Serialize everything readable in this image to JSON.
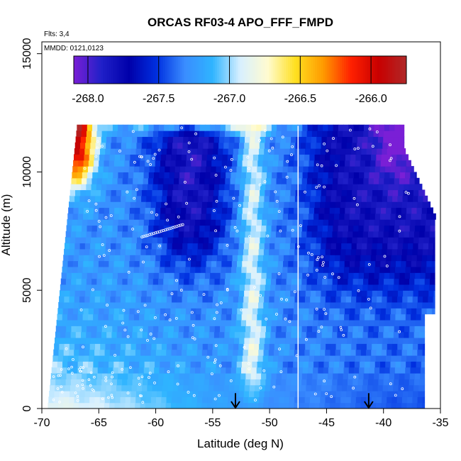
{
  "chart_data": {
    "type": "heatmap",
    "title": "ORCAS RF03-4 APO_FFF_FMPD",
    "notes": [
      "Flts: 3,4",
      "MMDD: 0121,0123"
    ],
    "xlabel": "Latitude (deg N)",
    "ylabel": "Altitude (m)",
    "xlim": [
      -70,
      -35
    ],
    "ylim": [
      0,
      15500
    ],
    "x_ticks": [
      -70,
      -65,
      -60,
      -55,
      -50,
      -45,
      -40,
      -35
    ],
    "x_tick_labels": [
      "-70",
      "-65",
      "-60",
      "-55",
      "-50",
      "-45",
      "-40",
      "-35"
    ],
    "y_ticks": [
      0,
      5000,
      10000,
      15000
    ],
    "y_tick_labels": [
      "0",
      "5000",
      "10000",
      "15000"
    ],
    "colorbar": {
      "min": -268.1,
      "max": -265.75,
      "ticks": [
        -268.0,
        -267.5,
        -267.0,
        -266.5,
        -266.0
      ],
      "tick_labels": [
        "-268.0",
        "-267.5",
        "-267.0",
        "-266.5",
        "-266.0"
      ],
      "palette": [
        "#7a1fd6",
        "#2020c8",
        "#0000aa",
        "#0030e0",
        "#3a8cff",
        "#2fb4ff",
        "#d8f0ff",
        "#fffbd0",
        "#ffe020",
        "#ff9a00",
        "#ff2000",
        "#c80000",
        "#b02828"
      ]
    },
    "field": {
      "lat_range": [
        -69.5,
        -36.3
      ],
      "alt_range": [
        0,
        12000
      ],
      "summary": "High values (yellow, -266.9) near surface south of -60 and along a narrow column near -52 to -51; low values (dark blue, -267.9) aloft between -60 and -55 and north of -47; maximum (red, -265.8) at 11000-12000 m south of -65; minimum (purple) at 11000-12000 m near -39."
    },
    "vertical_line_lat": -47.5,
    "arrows_lat": [
      -53,
      -41.3
    ],
    "grid": false,
    "legend": "colorbar top"
  }
}
